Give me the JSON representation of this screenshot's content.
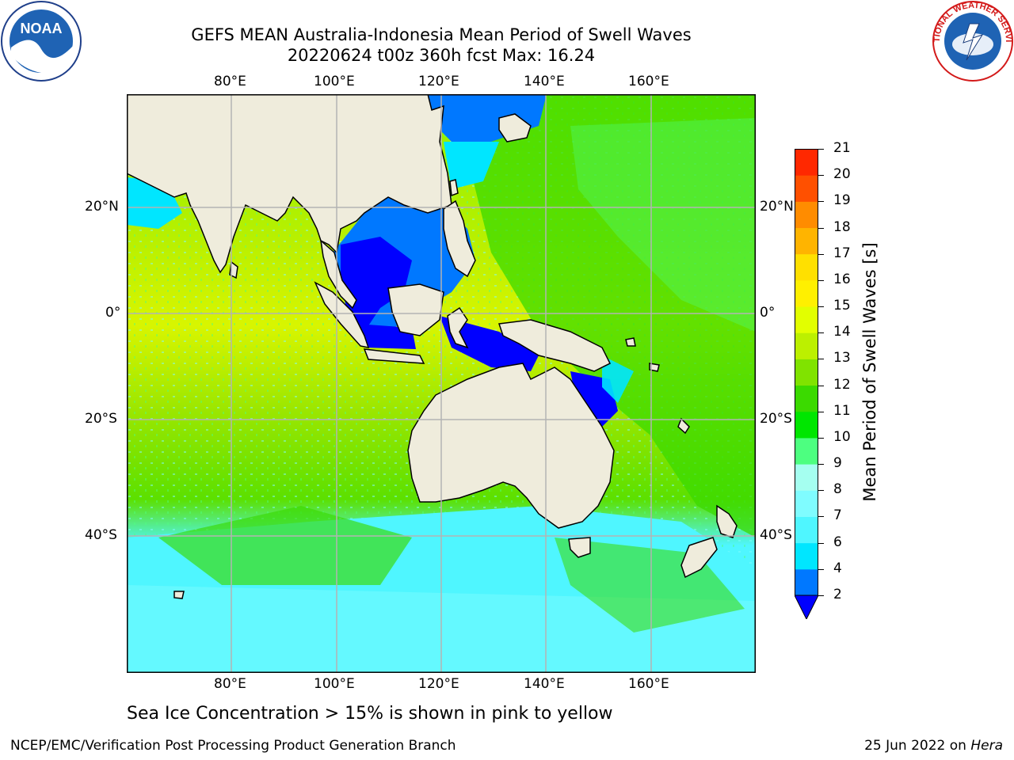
{
  "title": {
    "line1": "GEFS MEAN Australia-Indonesia Mean Period of Swell Waves",
    "line2": "20220624 t00z 360h fcst   Max: 16.24"
  },
  "logos": {
    "left": {
      "icon": "noaa-logo",
      "text": "NOAA"
    },
    "right": {
      "icon": "nws-logo",
      "text": "NATIONAL WEATHER SERVICE"
    }
  },
  "map": {
    "lon_ticks": [
      "80°E",
      "100°E",
      "120°E",
      "140°E",
      "160°E"
    ],
    "lat_ticks": [
      "20°N",
      "0°",
      "20°S",
      "40°S"
    ],
    "extent": {
      "lon": [
        60,
        180
      ],
      "lat": [
        -68,
        42
      ]
    },
    "land_color": "#efecdc",
    "grid_color": "#b3b3b3"
  },
  "colorbar": {
    "title": "Mean Period of Swell Waves [s]",
    "levels": [
      "2",
      "4",
      "6",
      "7",
      "8",
      "9",
      "10",
      "11",
      "12",
      "13",
      "14",
      "15",
      "16",
      "17",
      "18",
      "19",
      "20",
      "21"
    ],
    "colors": [
      "#0078ff",
      "#00e6ff",
      "#4ff6ff",
      "#7ffcff",
      "#a5fff0",
      "#4dff80",
      "#00e600",
      "#3bda00",
      "#80e300",
      "#bcf000",
      "#e2ff00",
      "#fff000",
      "#ffe000",
      "#ffb400",
      "#ff8c00",
      "#ff5000",
      "#ff2800",
      "#ff0000"
    ],
    "under_color": "#0000ff"
  },
  "note": "Sea Ice Concentration > 15% is shown in pink to yellow",
  "footer": {
    "left": "NCEP/EMC/Verification Post Processing Product Generation Branch",
    "date": "25 Jun 2022 on ",
    "machine": "Hera"
  }
}
